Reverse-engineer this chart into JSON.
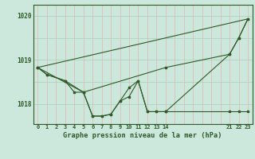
{
  "title": "Graphe pression niveau de la mer (hPa)",
  "bg_color": "#cce8dc",
  "line_color": "#2d5a27",
  "grid_color_v": "#e8b0b0",
  "grid_color_h": "#a8d0b8",
  "xlim_min": -0.5,
  "xlim_max": 23.5,
  "ylim_min": 1017.55,
  "ylim_max": 1020.25,
  "yticks": [
    1018,
    1019,
    1020
  ],
  "series_zigzag": {
    "x": [
      0,
      1,
      3,
      4,
      5,
      6,
      7,
      8,
      9,
      10,
      11,
      12,
      13,
      14
    ],
    "y": [
      1018.83,
      1018.67,
      1018.53,
      1018.27,
      1018.27,
      1017.73,
      1017.73,
      1017.77,
      1018.07,
      1018.17,
      1018.53,
      1017.83,
      1017.83,
      1017.83
    ]
  },
  "series_right": {
    "x": [
      14,
      21,
      22,
      23
    ],
    "y": [
      1017.83,
      1017.83,
      1017.83,
      1017.83
    ]
  },
  "series_main": {
    "x": [
      0,
      1,
      3,
      5,
      6,
      7,
      8,
      9,
      10,
      11,
      12,
      13,
      14,
      21,
      22,
      23
    ],
    "y": [
      1018.83,
      1018.67,
      1018.53,
      1018.27,
      1017.73,
      1017.73,
      1017.77,
      1018.07,
      1018.37,
      1018.53,
      1017.83,
      1017.83,
      1017.83,
      1019.13,
      1019.5,
      1019.93
    ]
  },
  "series_envelope": {
    "x": [
      0,
      5,
      14,
      21,
      22,
      23
    ],
    "y": [
      1018.83,
      1018.27,
      1018.83,
      1019.13,
      1019.5,
      1019.93
    ]
  },
  "series_straight": {
    "x": [
      0,
      23
    ],
    "y": [
      1018.83,
      1019.93
    ]
  }
}
